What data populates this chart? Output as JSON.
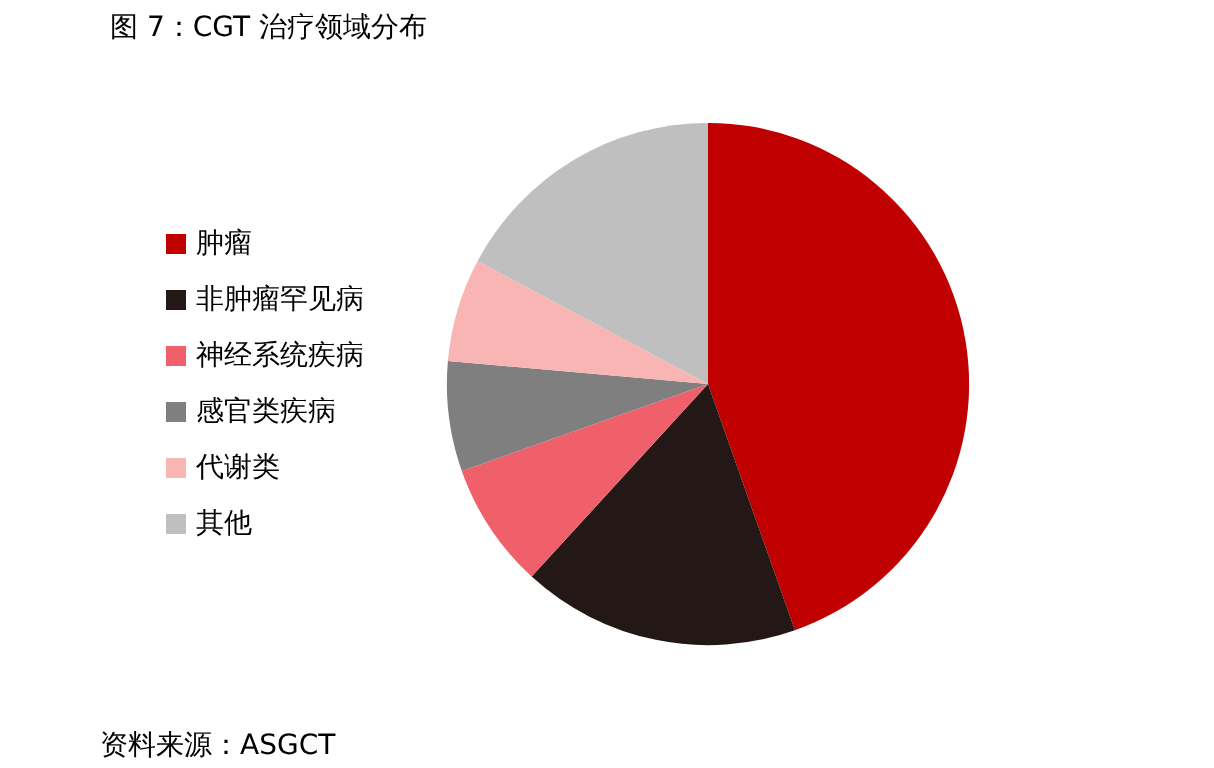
{
  "chart_data": {
    "type": "pie",
    "title": "图 7：CGT 治疗领域分布",
    "categories": [
      "肿瘤",
      "非肿瘤罕见病",
      "神经系统疾病",
      "感官类疾病",
      "代谢类",
      "其他"
    ],
    "values": [
      44.6,
      17.2,
      7.8,
      6.8,
      6.4,
      17.2
    ],
    "colors": [
      "#c00000",
      "#231815",
      "#f0606a",
      "#7f7f7f",
      "#f9b4b4",
      "#bfbfbf"
    ],
    "legend": "left",
    "annotations": [
      "资料来源：ASGCT"
    ]
  }
}
